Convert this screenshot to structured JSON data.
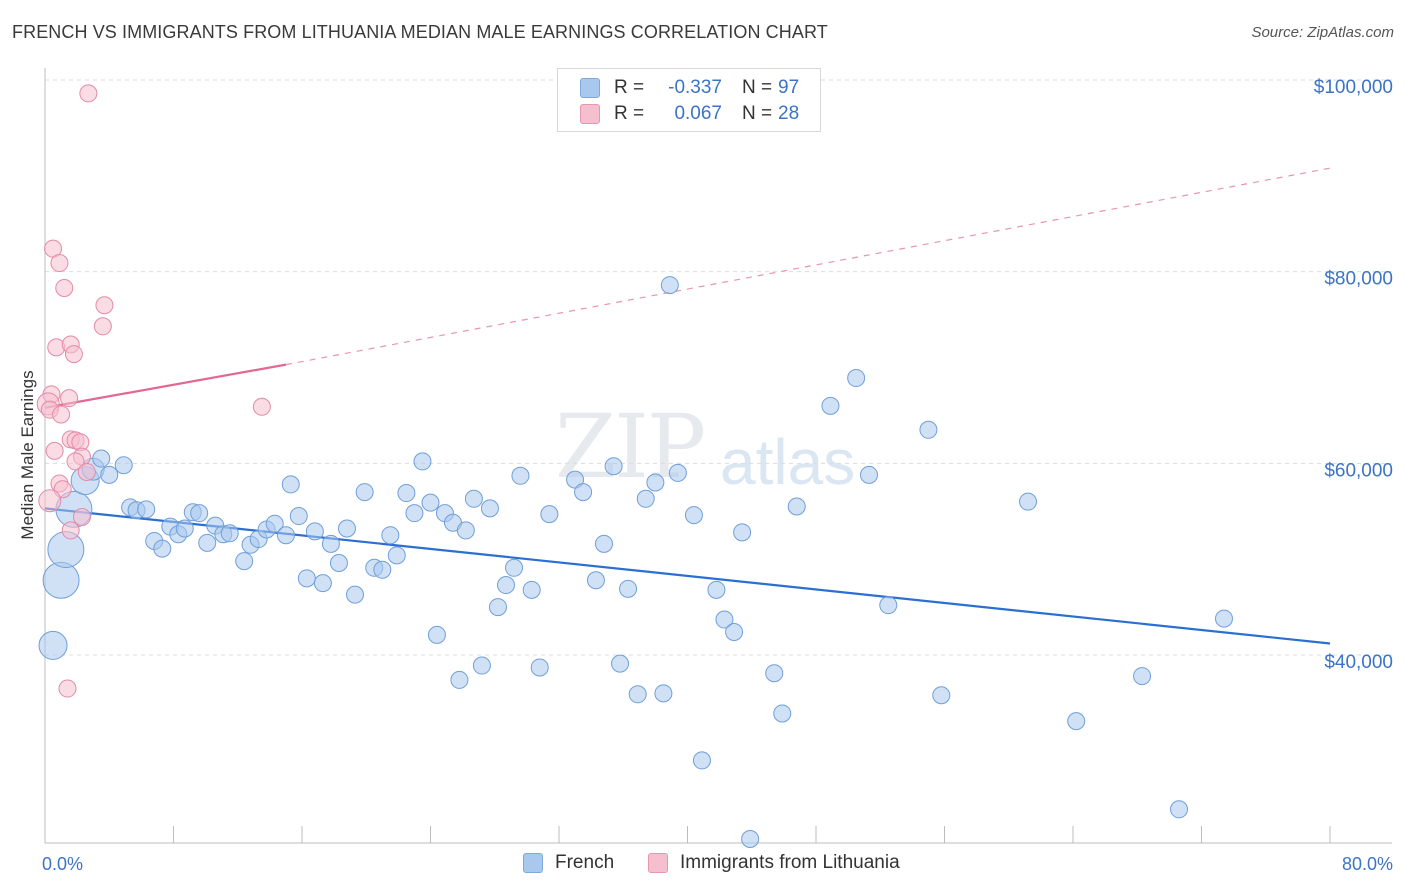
{
  "title": "FRENCH VS IMMIGRANTS FROM LITHUANIA MEDIAN MALE EARNINGS CORRELATION CHART",
  "source": "Source: ZipAtlas.com",
  "watermark": {
    "zip": "ZIP",
    "atlas": "atlas"
  },
  "legend": {
    "rows": [
      {
        "r_label": "R =",
        "r_value": "-0.337",
        "n_label": "N =",
        "n_value": "97",
        "color": "#a9c8ee",
        "border": "#7fa8dc"
      },
      {
        "r_label": "R =",
        "r_value": "0.067",
        "n_label": "N =",
        "n_value": "28",
        "color": "#f6bfd0",
        "border": "#e895b0"
      }
    ]
  },
  "bottom_legend": [
    {
      "label": "French",
      "color": "#a9c8ee",
      "border": "#7fa8dc"
    },
    {
      "label": "Immigrants from Lithuania",
      "color": "#f6bfd0",
      "border": "#e895b0"
    }
  ],
  "chart_data": {
    "type": "scatter",
    "title": "FRENCH VS IMMIGRANTS FROM LITHUANIA MEDIAN MALE EARNINGS CORRELATION CHART",
    "xlabel": "",
    "ylabel": "Median Male Earnings",
    "xlim": [
      0,
      80
    ],
    "ylim": [
      20000,
      102000
    ],
    "x_tick_labels": [
      {
        "value": 0,
        "label": "0.0%"
      },
      {
        "value": 80,
        "label": "80.0%"
      }
    ],
    "x_minor_ticks": [
      8,
      16,
      24,
      32,
      40,
      48,
      56,
      64,
      72,
      80
    ],
    "y_ticks": [
      {
        "value": 40000,
        "label": "$40,000"
      },
      {
        "value": 60000,
        "label": "$60,000"
      },
      {
        "value": 80000,
        "label": "$80,000"
      },
      {
        "value": 100000,
        "label": "$100,000"
      }
    ],
    "grid": true,
    "series": [
      {
        "name": "French",
        "color": "#a9c8ee",
        "stroke": "#6f9fd8",
        "trend": {
          "x0": 0,
          "y0": 55300,
          "x1": 80,
          "y1": 41200,
          "color": "#2a6fd1"
        },
        "points": [
          {
            "x": 0.5,
            "y": 41000,
            "s": 3
          },
          {
            "x": 1.0,
            "y": 47800,
            "s": 4
          },
          {
            "x": 1.3,
            "y": 51000,
            "s": 4
          },
          {
            "x": 1.8,
            "y": 55200,
            "s": 4
          },
          {
            "x": 2.5,
            "y": 58200,
            "s": 3
          },
          {
            "x": 3.0,
            "y": 59400,
            "s": 2
          },
          {
            "x": 3.5,
            "y": 60500,
            "s": 1
          },
          {
            "x": 4.0,
            "y": 58800,
            "s": 1
          },
          {
            "x": 4.9,
            "y": 59800,
            "s": 1
          },
          {
            "x": 5.3,
            "y": 55400,
            "s": 1
          },
          {
            "x": 5.7,
            "y": 55100,
            "s": 1
          },
          {
            "x": 6.3,
            "y": 55200,
            "s": 1
          },
          {
            "x": 6.8,
            "y": 51900,
            "s": 1
          },
          {
            "x": 7.3,
            "y": 51100,
            "s": 1
          },
          {
            "x": 7.8,
            "y": 53400,
            "s": 1
          },
          {
            "x": 8.3,
            "y": 52600,
            "s": 1
          },
          {
            "x": 8.7,
            "y": 53200,
            "s": 1
          },
          {
            "x": 9.2,
            "y": 54900,
            "s": 1
          },
          {
            "x": 9.6,
            "y": 54800,
            "s": 1
          },
          {
            "x": 10.1,
            "y": 51700,
            "s": 1
          },
          {
            "x": 10.6,
            "y": 53500,
            "s": 1
          },
          {
            "x": 11.1,
            "y": 52600,
            "s": 1
          },
          {
            "x": 11.5,
            "y": 52700,
            "s": 1
          },
          {
            "x": 12.4,
            "y": 49800,
            "s": 1
          },
          {
            "x": 12.8,
            "y": 51500,
            "s": 1
          },
          {
            "x": 13.3,
            "y": 52100,
            "s": 1
          },
          {
            "x": 13.8,
            "y": 53100,
            "s": 1
          },
          {
            "x": 14.3,
            "y": 53700,
            "s": 1
          },
          {
            "x": 15.0,
            "y": 52500,
            "s": 1
          },
          {
            "x": 15.3,
            "y": 57800,
            "s": 1
          },
          {
            "x": 15.8,
            "y": 54500,
            "s": 1
          },
          {
            "x": 16.3,
            "y": 48000,
            "s": 1
          },
          {
            "x": 16.8,
            "y": 52900,
            "s": 1
          },
          {
            "x": 17.3,
            "y": 47500,
            "s": 1
          },
          {
            "x": 17.8,
            "y": 51600,
            "s": 1
          },
          {
            "x": 18.3,
            "y": 49600,
            "s": 1
          },
          {
            "x": 18.8,
            "y": 53200,
            "s": 1
          },
          {
            "x": 19.3,
            "y": 46300,
            "s": 1
          },
          {
            "x": 19.9,
            "y": 57000,
            "s": 1
          },
          {
            "x": 20.5,
            "y": 49100,
            "s": 1
          },
          {
            "x": 21.0,
            "y": 48900,
            "s": 1
          },
          {
            "x": 21.5,
            "y": 52500,
            "s": 1
          },
          {
            "x": 21.9,
            "y": 50400,
            "s": 1
          },
          {
            "x": 22.5,
            "y": 56900,
            "s": 1
          },
          {
            "x": 23.0,
            "y": 54800,
            "s": 1
          },
          {
            "x": 23.5,
            "y": 60200,
            "s": 1
          },
          {
            "x": 24.0,
            "y": 55900,
            "s": 1
          },
          {
            "x": 24.4,
            "y": 42100,
            "s": 1
          },
          {
            "x": 24.9,
            "y": 54800,
            "s": 1
          },
          {
            "x": 25.4,
            "y": 53800,
            "s": 1
          },
          {
            "x": 25.8,
            "y": 37400,
            "s": 1
          },
          {
            "x": 26.2,
            "y": 53000,
            "s": 1
          },
          {
            "x": 26.7,
            "y": 56300,
            "s": 1
          },
          {
            "x": 27.2,
            "y": 38900,
            "s": 1
          },
          {
            "x": 27.7,
            "y": 55300,
            "s": 1
          },
          {
            "x": 28.2,
            "y": 45000,
            "s": 1
          },
          {
            "x": 28.7,
            "y": 47300,
            "s": 1
          },
          {
            "x": 29.2,
            "y": 49100,
            "s": 1
          },
          {
            "x": 29.6,
            "y": 58700,
            "s": 1
          },
          {
            "x": 30.3,
            "y": 46800,
            "s": 1
          },
          {
            "x": 30.8,
            "y": 38700,
            "s": 1
          },
          {
            "x": 31.4,
            "y": 54700,
            "s": 1
          },
          {
            "x": 33.0,
            "y": 58300,
            "s": 1
          },
          {
            "x": 33.5,
            "y": 57000,
            "s": 1
          },
          {
            "x": 34.3,
            "y": 47800,
            "s": 1
          },
          {
            "x": 34.8,
            "y": 51600,
            "s": 1
          },
          {
            "x": 35.4,
            "y": 59700,
            "s": 1
          },
          {
            "x": 35.8,
            "y": 39100,
            "s": 1
          },
          {
            "x": 36.3,
            "y": 46900,
            "s": 1
          },
          {
            "x": 36.9,
            "y": 35900,
            "s": 1
          },
          {
            "x": 37.4,
            "y": 56300,
            "s": 1
          },
          {
            "x": 38.0,
            "y": 58000,
            "s": 1
          },
          {
            "x": 38.5,
            "y": 36000,
            "s": 1
          },
          {
            "x": 38.9,
            "y": 78600,
            "s": 1
          },
          {
            "x": 39.4,
            "y": 59000,
            "s": 1
          },
          {
            "x": 40.4,
            "y": 54600,
            "s": 1
          },
          {
            "x": 40.9,
            "y": 29000,
            "s": 1
          },
          {
            "x": 41.8,
            "y": 46800,
            "s": 1
          },
          {
            "x": 42.3,
            "y": 43700,
            "s": 1
          },
          {
            "x": 42.9,
            "y": 42400,
            "s": 1
          },
          {
            "x": 43.4,
            "y": 52800,
            "s": 1
          },
          {
            "x": 43.9,
            "y": 20800,
            "s": 1
          },
          {
            "x": 45.4,
            "y": 38100,
            "s": 1
          },
          {
            "x": 45.9,
            "y": 33900,
            "s": 1
          },
          {
            "x": 46.8,
            "y": 55500,
            "s": 1
          },
          {
            "x": 48.9,
            "y": 66000,
            "s": 1
          },
          {
            "x": 50.5,
            "y": 68900,
            "s": 1
          },
          {
            "x": 51.3,
            "y": 58800,
            "s": 1
          },
          {
            "x": 52.5,
            "y": 45200,
            "s": 1
          },
          {
            "x": 55.0,
            "y": 63500,
            "s": 1
          },
          {
            "x": 55.8,
            "y": 35800,
            "s": 1
          },
          {
            "x": 61.2,
            "y": 56000,
            "s": 1
          },
          {
            "x": 64.2,
            "y": 33100,
            "s": 1
          },
          {
            "x": 68.3,
            "y": 37800,
            "s": 1
          },
          {
            "x": 70.6,
            "y": 23900,
            "s": 1
          },
          {
            "x": 73.4,
            "y": 43800,
            "s": 1
          }
        ]
      },
      {
        "name": "Immigrants from Lithuania",
        "color": "#f6bfd0",
        "stroke": "#e48aa8",
        "trend": {
          "x0": 0,
          "y0": 65800,
          "x1": 15,
          "y1": 70300,
          "dash_x1": 80,
          "dash_y1": 90800,
          "color": "#e3688f"
        },
        "points": [
          {
            "x": 2.7,
            "y": 98600,
            "s": 1
          },
          {
            "x": 0.5,
            "y": 82400,
            "s": 1
          },
          {
            "x": 0.9,
            "y": 80900,
            "s": 1
          },
          {
            "x": 1.2,
            "y": 78300,
            "s": 1
          },
          {
            "x": 3.7,
            "y": 76500,
            "s": 1
          },
          {
            "x": 3.6,
            "y": 74300,
            "s": 1
          },
          {
            "x": 0.7,
            "y": 72100,
            "s": 1
          },
          {
            "x": 1.6,
            "y": 72400,
            "s": 1
          },
          {
            "x": 1.8,
            "y": 71400,
            "s": 1
          },
          {
            "x": 0.4,
            "y": 67200,
            "s": 1
          },
          {
            "x": 0.2,
            "y": 66200,
            "s": 2
          },
          {
            "x": 1.5,
            "y": 66800,
            "s": 1
          },
          {
            "x": 0.3,
            "y": 65600,
            "s": 1
          },
          {
            "x": 1.0,
            "y": 65100,
            "s": 1
          },
          {
            "x": 13.5,
            "y": 65900,
            "s": 1
          },
          {
            "x": 1.6,
            "y": 62500,
            "s": 1
          },
          {
            "x": 1.9,
            "y": 62400,
            "s": 1
          },
          {
            "x": 2.2,
            "y": 62200,
            "s": 1
          },
          {
            "x": 0.6,
            "y": 61300,
            "s": 1
          },
          {
            "x": 2.3,
            "y": 60700,
            "s": 1
          },
          {
            "x": 1.9,
            "y": 60200,
            "s": 1
          },
          {
            "x": 2.6,
            "y": 59100,
            "s": 1
          },
          {
            "x": 0.9,
            "y": 57900,
            "s": 1
          },
          {
            "x": 1.1,
            "y": 57300,
            "s": 1
          },
          {
            "x": 0.3,
            "y": 56100,
            "s": 2
          },
          {
            "x": 2.3,
            "y": 54400,
            "s": 1
          },
          {
            "x": 1.6,
            "y": 53000,
            "s": 1
          },
          {
            "x": 1.4,
            "y": 36500,
            "s": 1
          }
        ]
      }
    ]
  }
}
